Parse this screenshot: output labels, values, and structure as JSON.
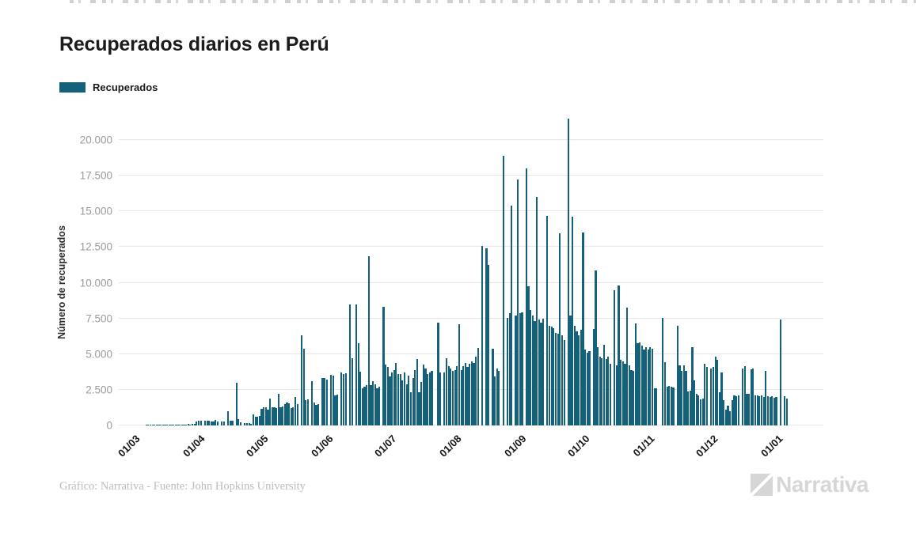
{
  "title": "Recuperados diarios en Perú",
  "legend": {
    "label": "Recuperados"
  },
  "footer": {
    "credit": "Gráfico: Narrativa - Fuente: John Hopkins University",
    "brand": "Narrativa"
  },
  "colors": {
    "bar": "#15607a",
    "grid": "#e8e8e8",
    "tick_text": "#9b9b9b",
    "title_text": "#1b1b1b",
    "brand_gray": "#d6d6d6"
  },
  "chart_data": {
    "type": "bar",
    "title": "Recuperados diarios en Perú",
    "xlabel": "",
    "ylabel": "Número de recuperados",
    "ylim": [
      0,
      21500
    ],
    "grid": true,
    "legend_position": "top-left",
    "yticks": [
      0,
      2500,
      5000,
      7500,
      10000,
      12500,
      15000,
      17500,
      20000
    ],
    "ytick_labels": [
      "0",
      "2.500",
      "5.000",
      "7.500",
      "10.000",
      "12.500",
      "15.000",
      "17.500",
      "20.000"
    ],
    "xticks": [
      {
        "label": "01/03",
        "day": 0
      },
      {
        "label": "01/04",
        "day": 31
      },
      {
        "label": "01/05",
        "day": 61
      },
      {
        "label": "01/06",
        "day": 92
      },
      {
        "label": "01/07",
        "day": 122
      },
      {
        "label": "01/08",
        "day": 153
      },
      {
        "label": "01/09",
        "day": 184
      },
      {
        "label": "01/10",
        "day": 214
      },
      {
        "label": "01/11",
        "day": 245
      },
      {
        "label": "01/12",
        "day": 275
      },
      {
        "label": "01/01",
        "day": 306
      }
    ],
    "series": [
      {
        "name": "Recuperados",
        "values": [
          0,
          0,
          0,
          0,
          0,
          0,
          0,
          25,
          30,
          35,
          40,
          45,
          40,
          50,
          45,
          55,
          50,
          60,
          55,
          65,
          60,
          70,
          65,
          75,
          70,
          80,
          75,
          85,
          80,
          90,
          95,
          280,
          350,
          320,
          0,
          330,
          310,
          350,
          280,
          300,
          380,
          290,
          0,
          280,
          270,
          0,
          1000,
          350,
          340,
          0,
          3000,
          450,
          200,
          0,
          150,
          180,
          150,
          120,
          800,
          590,
          620,
          680,
          1190,
          1250,
          1290,
          1100,
          1900,
          1300,
          1250,
          1200,
          2200,
          1300,
          1350,
          1500,
          1600,
          1550,
          1200,
          1250,
          2000,
          1500,
          0,
          6300,
          5400,
          1800,
          1850,
          0,
          3100,
          1600,
          1450,
          1500,
          0,
          3300,
          3300,
          3200,
          0,
          3550,
          3500,
          2100,
          2150,
          0,
          3700,
          3600,
          3650,
          0,
          8500,
          4700,
          0,
          8450,
          5760,
          3765,
          2600,
          2700,
          2800,
          11870,
          2800,
          3100,
          2900,
          2600,
          2700,
          0,
          8300,
          4265,
          4080,
          3430,
          3700,
          3900,
          4350,
          3620,
          3620,
          3150,
          3700,
          2870,
          3500,
          2310,
          3350,
          3900,
          4650,
          2310,
          3060,
          4270,
          3990,
          3620,
          3700,
          3800,
          0,
          0,
          7200,
          3700,
          0,
          3700,
          4735,
          4180,
          3990,
          3800,
          3900,
          4180,
          7100,
          3900,
          4180,
          4350,
          4100,
          4300,
          4500,
          4400,
          4825,
          5440,
          0,
          12600,
          0,
          12400,
          11230,
          0,
          5400,
          3450,
          3990,
          3800,
          0,
          18890,
          0,
          7550,
          7865,
          15390,
          0,
          7700,
          17215,
          7865,
          7900,
          0,
          18030,
          9765,
          8090,
          7700,
          7300,
          15990,
          7400,
          7200,
          7500,
          0,
          14700,
          7000,
          6900,
          6800,
          6500,
          6400,
          13450,
          6300,
          6000,
          0,
          21500,
          7700,
          14600,
          7000,
          6600,
          6300,
          6700,
          13500,
          5300,
          5100,
          5200,
          0,
          6780,
          10840,
          5500,
          4825,
          4700,
          5665,
          4640,
          4800,
          4300,
          0,
          9500,
          4200,
          9800,
          4600,
          4500,
          4300,
          8270,
          4200,
          3900,
          3800,
          7155,
          5755,
          5800,
          5600,
          5300,
          5470,
          5300,
          5500,
          5400,
          2590,
          2600,
          0,
          0,
          7530,
          4455,
          2700,
          2750,
          2700,
          2650,
          0,
          6970,
          4200,
          3800,
          4200,
          3800,
          2400,
          2450,
          5480,
          3150,
          2240,
          2125,
          1845,
          1900,
          4320,
          4100,
          0,
          3990,
          4100,
          4825,
          4600,
          2310,
          3710,
          1750,
          1100,
          1400,
          1000,
          1800,
          2100,
          2050,
          2100,
          0,
          3990,
          4140,
          2240,
          2200,
          3960,
          4000,
          2100,
          2130,
          2050,
          2130,
          2000,
          3840,
          2050,
          2000,
          2060,
          1950,
          2000,
          0,
          7435,
          0,
          2060,
          1900
        ]
      }
    ]
  }
}
